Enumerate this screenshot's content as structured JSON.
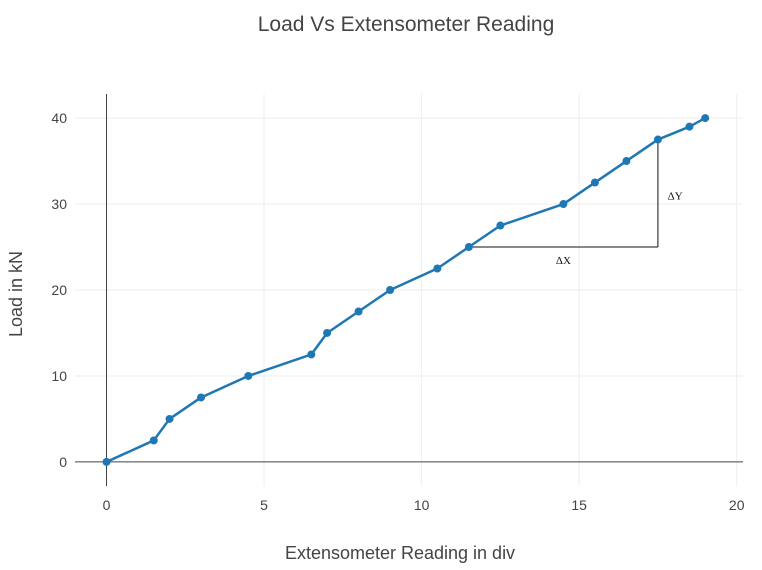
{
  "chart_data": {
    "type": "line",
    "title": "Load Vs Extensometer Reading",
    "xlabel": "Extensometer Reading in div",
    "ylabel": "Load in kN",
    "xlim": [
      -1,
      20.2
    ],
    "ylim": [
      -2.8,
      42.8
    ],
    "x_ticks": [
      0,
      5,
      10,
      15,
      20
    ],
    "y_ticks": [
      0,
      10,
      20,
      30,
      40
    ],
    "grid": true,
    "legend": "none",
    "series": [
      {
        "color": "#1f77b4",
        "x": [
          0,
          1.5,
          2,
          3,
          4.5,
          6.5,
          7,
          8,
          9,
          10.5,
          11.5,
          12.5,
          14.5,
          15.5,
          16.5,
          17.5,
          18.5,
          19
        ],
        "y": [
          0,
          2.5,
          5,
          7.5,
          10,
          12.5,
          15,
          17.5,
          20,
          22.5,
          25,
          27.5,
          30,
          32.5,
          35,
          37.5,
          39,
          40
        ]
      }
    ],
    "annotations": {
      "triangle": {
        "x_start": 11.5,
        "x_end": 17.5,
        "y_base": 25,
        "y_top": 37.5
      },
      "dx": {
        "text": "ΔX",
        "x": 14.5,
        "y": 23.5
      },
      "dy": {
        "text": "ΔY",
        "x": 18.0,
        "y": 31
      }
    }
  }
}
